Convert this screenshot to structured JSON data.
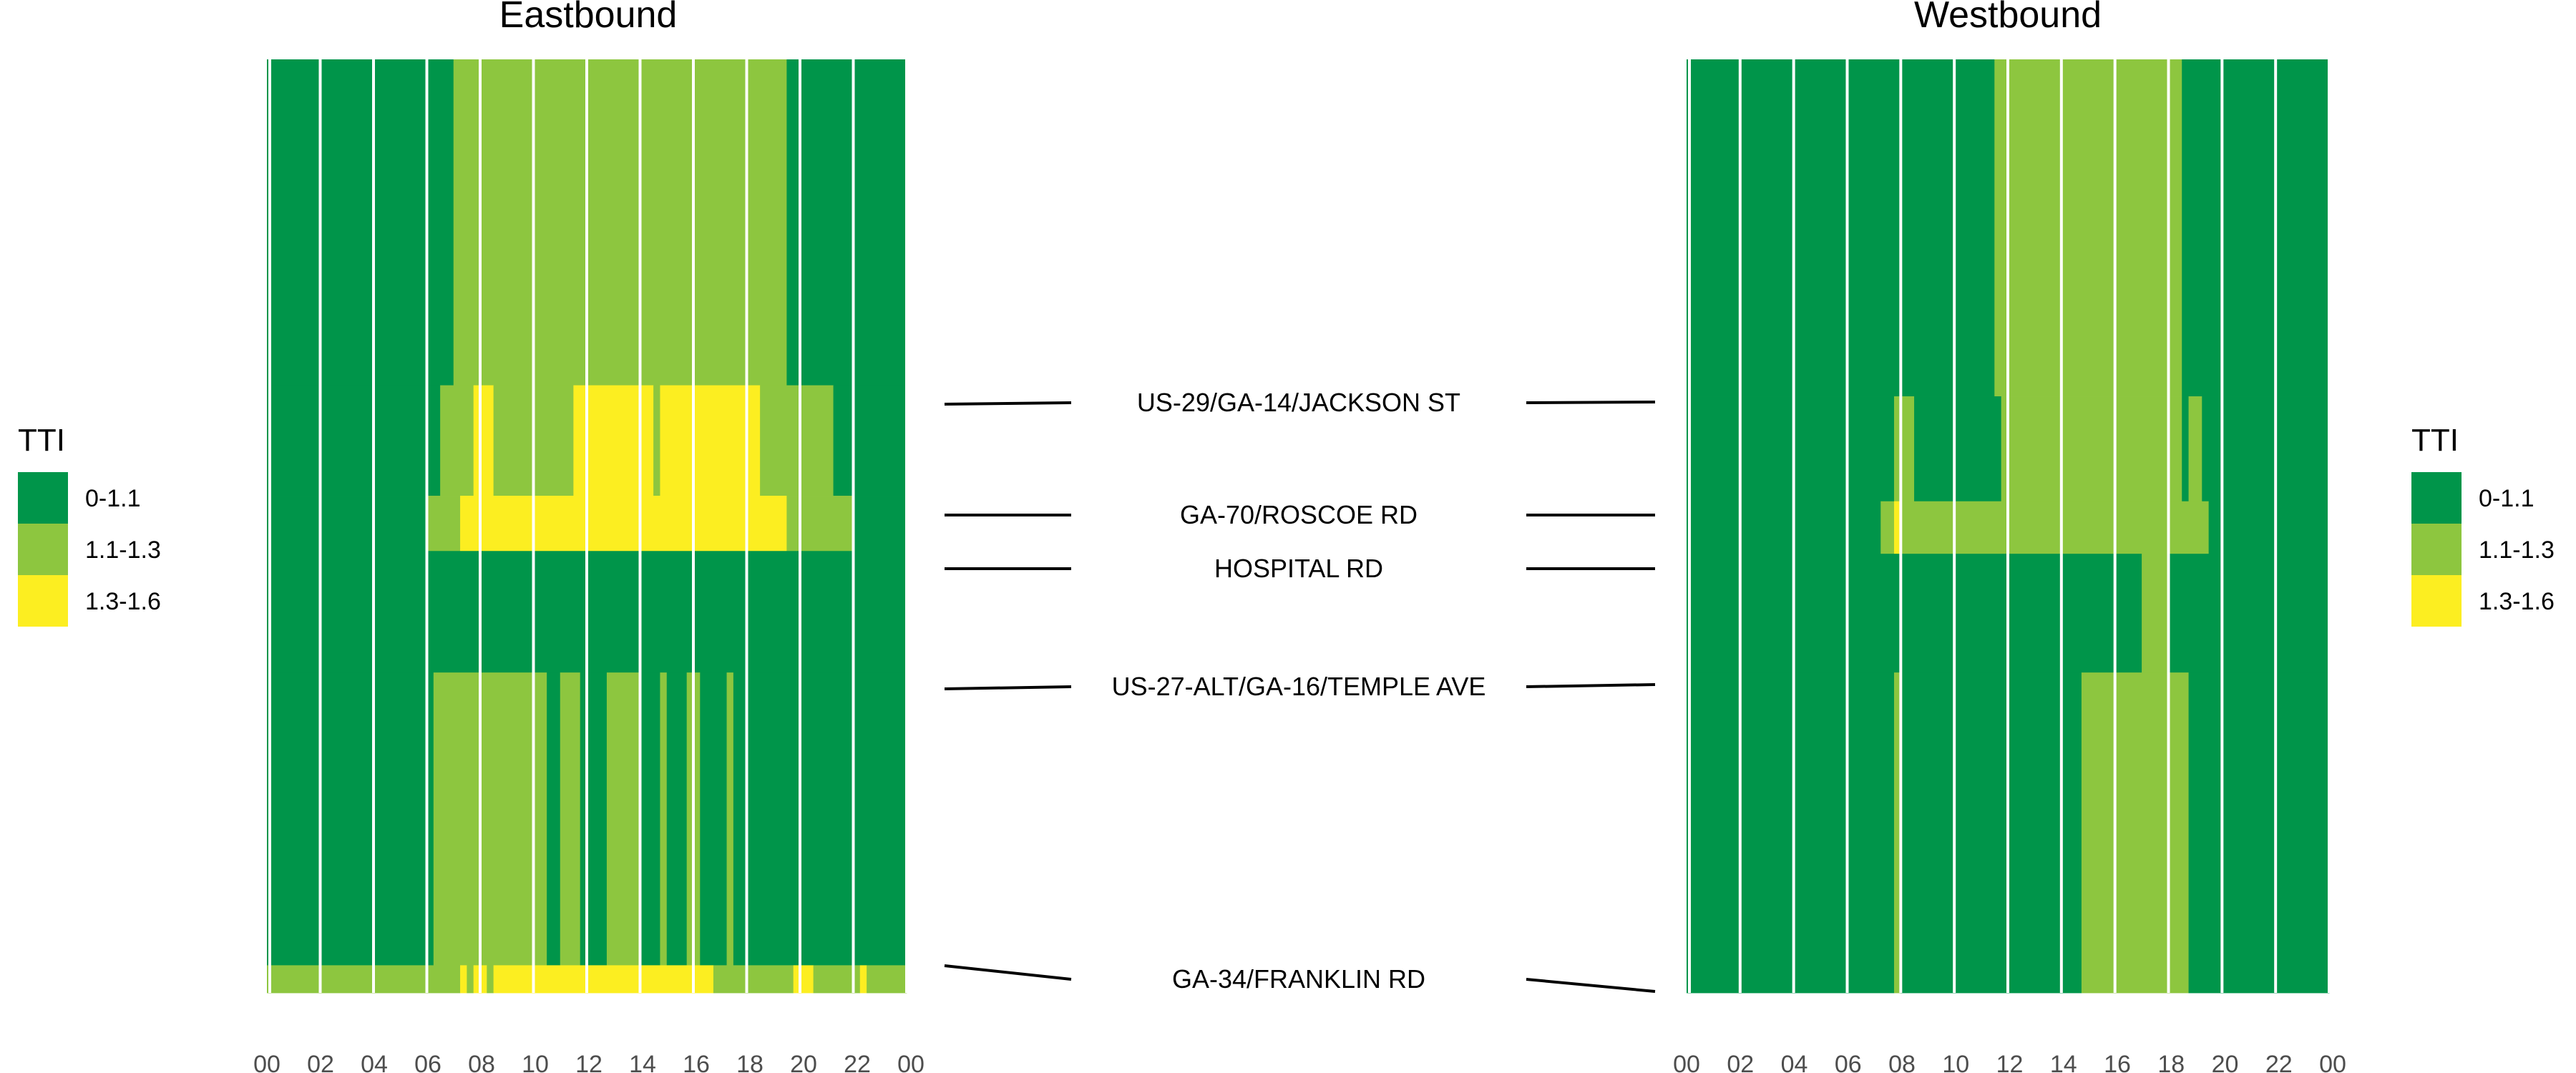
{
  "chart_data": {
    "type": "heatmap",
    "colors": {
      "0-1.1": "#00954a",
      "1.1-1.3": "#8dc63f",
      "1.3-1.6": "#fcee21"
    },
    "legend": {
      "title": "TTI",
      "items": [
        "0-1.1",
        "1.1-1.3",
        "1.3-1.6"
      ]
    },
    "x_ticks": [
      "00",
      "02",
      "04",
      "06",
      "08",
      "10",
      "12",
      "14",
      "16",
      "18",
      "20",
      "22",
      "00"
    ],
    "x_range": [
      0,
      24
    ],
    "y_range": [
      0,
      16.9
    ],
    "road_labels": [
      "US-29/GA-14/JACKSON ST",
      "GA-70/ROSCOE RD",
      "HOSPITAL RD",
      "US-27-ALT/GA-16/TEMPLE AVE",
      "GA-34/FRANKLIN RD"
    ],
    "panels": [
      {
        "title": "Eastbound",
        "segments": [
          {
            "y0": 0,
            "y1": 5.9,
            "runs": [
              [
                0,
                7,
                "0-1.1"
              ],
              [
                7,
                19.5,
                "1.1-1.3"
              ],
              [
                19.5,
                24,
                "0-1.1"
              ]
            ]
          },
          {
            "y0": 5.9,
            "y1": 7.9,
            "runs": [
              [
                0,
                6.5,
                "0-1.1"
              ],
              [
                6.5,
                7.75,
                "1.1-1.3"
              ],
              [
                7.75,
                8.5,
                "1.3-1.6"
              ],
              [
                8.5,
                11.5,
                "1.1-1.3"
              ],
              [
                11.5,
                14.5,
                "1.3-1.6"
              ],
              [
                14.5,
                14.75,
                "1.1-1.3"
              ],
              [
                14.75,
                18.5,
                "1.3-1.6"
              ],
              [
                18.5,
                21.25,
                "1.1-1.3"
              ],
              [
                21.25,
                24,
                "0-1.1"
              ]
            ]
          },
          {
            "y0": 7.9,
            "y1": 8.9,
            "runs": [
              [
                0,
                6,
                "0-1.1"
              ],
              [
                6,
                7.25,
                "1.1-1.3"
              ],
              [
                7.25,
                19.5,
                "1.3-1.6"
              ],
              [
                19.5,
                22,
                "1.1-1.3"
              ],
              [
                22,
                24,
                "0-1.1"
              ]
            ]
          },
          {
            "y0": 8.9,
            "y1": 11.1,
            "runs": [
              [
                0,
                24,
                "0-1.1"
              ]
            ]
          },
          {
            "y0": 11.1,
            "y1": 16.4,
            "runs": [
              [
                0,
                6.25,
                "0-1.1"
              ],
              [
                6.25,
                10.5,
                "1.1-1.3"
              ],
              [
                10.5,
                11,
                "0-1.1"
              ],
              [
                11,
                11.75,
                "1.1-1.3"
              ],
              [
                11.75,
                12.75,
                "0-1.1"
              ],
              [
                12.75,
                14,
                "1.1-1.3"
              ],
              [
                14,
                14.75,
                "0-1.1"
              ],
              [
                14.75,
                15,
                "1.1-1.3"
              ],
              [
                15,
                15.75,
                "0-1.1"
              ],
              [
                15.75,
                16.25,
                "1.1-1.3"
              ],
              [
                16.25,
                17.25,
                "0-1.1"
              ],
              [
                17.25,
                17.5,
                "1.1-1.3"
              ],
              [
                17.5,
                24,
                "0-1.1"
              ]
            ]
          },
          {
            "y0": 16.4,
            "y1": 16.9,
            "runs": [
              [
                0,
                7.25,
                "1.1-1.3"
              ],
              [
                7.25,
                7.5,
                "1.3-1.6"
              ],
              [
                7.5,
                7.75,
                "1.1-1.3"
              ],
              [
                7.75,
                8.25,
                "1.3-1.6"
              ],
              [
                8.25,
                8.5,
                "1.1-1.3"
              ],
              [
                8.5,
                16.75,
                "1.3-1.6"
              ],
              [
                16.75,
                19.75,
                "1.1-1.3"
              ],
              [
                19.75,
                20.5,
                "1.3-1.6"
              ],
              [
                20.5,
                22.25,
                "1.1-1.3"
              ],
              [
                22.25,
                22.5,
                "1.3-1.6"
              ],
              [
                22.5,
                24,
                "1.1-1.3"
              ]
            ]
          }
        ]
      },
      {
        "title": "Westbound",
        "segments": [
          {
            "y0": 0,
            "y1": 6.1,
            "runs": [
              [
                0,
                11.5,
                "0-1.1"
              ],
              [
                11.5,
                18.5,
                "1.1-1.3"
              ],
              [
                18.5,
                24,
                "0-1.1"
              ]
            ]
          },
          {
            "y0": 6.1,
            "y1": 8.0,
            "runs": [
              [
                0,
                7.75,
                "0-1.1"
              ],
              [
                7.75,
                8.5,
                "1.1-1.3"
              ],
              [
                8.5,
                11.75,
                "0-1.1"
              ],
              [
                11.75,
                18.5,
                "1.1-1.3"
              ],
              [
                18.5,
                18.75,
                "0-1.1"
              ],
              [
                18.75,
                19.25,
                "1.1-1.3"
              ],
              [
                19.25,
                24,
                "0-1.1"
              ]
            ]
          },
          {
            "y0": 8.0,
            "y1": 8.95,
            "runs": [
              [
                0,
                7.25,
                "0-1.1"
              ],
              [
                7.25,
                7.75,
                "1.1-1.3"
              ],
              [
                7.75,
                8.0,
                "1.3-1.6"
              ],
              [
                8.0,
                19.5,
                "1.1-1.3"
              ],
              [
                19.5,
                24,
                "0-1.1"
              ]
            ]
          },
          {
            "y0": 8.95,
            "y1": 11.1,
            "runs": [
              [
                0,
                17.0,
                "0-1.1"
              ],
              [
                17.0,
                18.0,
                "1.1-1.3"
              ],
              [
                18.0,
                24,
                "0-1.1"
              ]
            ]
          },
          {
            "y0": 11.1,
            "y1": 16.9,
            "runs": [
              [
                0,
                7.75,
                "0-1.1"
              ],
              [
                7.75,
                8.0,
                "1.1-1.3"
              ],
              [
                8.0,
                14.75,
                "0-1.1"
              ],
              [
                14.75,
                18.75,
                "1.1-1.3"
              ],
              [
                18.75,
                24,
                "0-1.1"
              ]
            ]
          }
        ]
      }
    ]
  }
}
